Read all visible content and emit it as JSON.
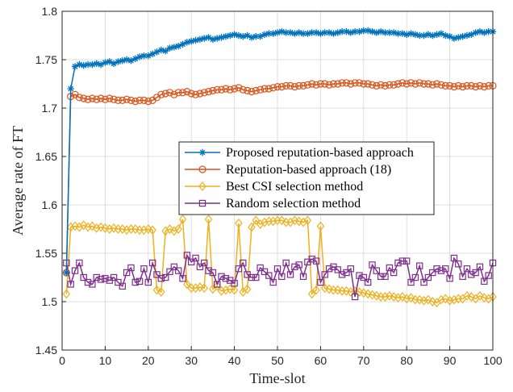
{
  "chart_data": {
    "type": "line",
    "title": "",
    "xlabel": "Time-slot",
    "ylabel": "Average rate of FT",
    "xlim": [
      0,
      100
    ],
    "ylim": [
      1.45,
      1.8
    ],
    "xticks": [
      0,
      10,
      20,
      30,
      40,
      50,
      60,
      70,
      80,
      90,
      100
    ],
    "xtick_labels": [
      "0",
      "10",
      "20",
      "30",
      "40",
      "50",
      "60",
      "70",
      "80",
      "90",
      "100"
    ],
    "yticks": [
      1.45,
      1.5,
      1.55,
      1.6,
      1.65,
      1.7,
      1.75,
      1.8
    ],
    "ytick_labels": [
      "1.45",
      "1.5",
      "1.55",
      "1.6",
      "1.65",
      "1.7",
      "1.75",
      "1.8"
    ],
    "grid": true,
    "legend_position": "center-right",
    "x": [
      1,
      2,
      3,
      4,
      5,
      6,
      7,
      8,
      9,
      10,
      11,
      12,
      13,
      14,
      15,
      16,
      17,
      18,
      19,
      20,
      21,
      22,
      23,
      24,
      25,
      26,
      27,
      28,
      29,
      30,
      31,
      32,
      33,
      34,
      35,
      36,
      37,
      38,
      39,
      40,
      41,
      42,
      43,
      44,
      45,
      46,
      47,
      48,
      49,
      50,
      51,
      52,
      53,
      54,
      55,
      56,
      57,
      58,
      59,
      60,
      61,
      62,
      63,
      64,
      65,
      66,
      67,
      68,
      69,
      70,
      71,
      72,
      73,
      74,
      75,
      76,
      77,
      78,
      79,
      80,
      81,
      82,
      83,
      84,
      85,
      86,
      87,
      88,
      89,
      90,
      91,
      92,
      93,
      94,
      95,
      96,
      97,
      98,
      99,
      100
    ],
    "series": [
      {
        "name": "Proposed reputation-based approach",
        "color": "#0072BD",
        "marker": "star",
        "values": [
          1.53,
          1.72,
          1.743,
          1.745,
          1.744,
          1.745,
          1.745,
          1.746,
          1.745,
          1.747,
          1.748,
          1.746,
          1.748,
          1.749,
          1.75,
          1.749,
          1.751,
          1.753,
          1.754,
          1.754,
          1.756,
          1.758,
          1.76,
          1.759,
          1.762,
          1.763,
          1.764,
          1.766,
          1.768,
          1.769,
          1.77,
          1.771,
          1.772,
          1.773,
          1.771,
          1.772,
          1.773,
          1.774,
          1.775,
          1.776,
          1.775,
          1.774,
          1.775,
          1.773,
          1.774,
          1.774,
          1.776,
          1.777,
          1.777,
          1.778,
          1.779,
          1.778,
          1.778,
          1.777,
          1.778,
          1.777,
          1.777,
          1.778,
          1.778,
          1.777,
          1.778,
          1.778,
          1.777,
          1.778,
          1.779,
          1.779,
          1.778,
          1.779,
          1.779,
          1.78,
          1.78,
          1.779,
          1.778,
          1.779,
          1.778,
          1.778,
          1.778,
          1.777,
          1.777,
          1.776,
          1.777,
          1.776,
          1.775,
          1.775,
          1.776,
          1.775,
          1.776,
          1.777,
          1.775,
          1.774,
          1.772,
          1.773,
          1.774,
          1.775,
          1.776,
          1.778,
          1.779,
          1.778,
          1.779,
          1.779
        ]
      },
      {
        "name": "Reputation-based approach (18)",
        "color": "#D95319",
        "marker": "circle",
        "values": [
          1.53,
          1.712,
          1.714,
          1.711,
          1.71,
          1.709,
          1.71,
          1.709,
          1.71,
          1.709,
          1.71,
          1.709,
          1.708,
          1.708,
          1.709,
          1.708,
          1.707,
          1.708,
          1.708,
          1.707,
          1.708,
          1.711,
          1.714,
          1.715,
          1.716,
          1.714,
          1.716,
          1.716,
          1.717,
          1.715,
          1.714,
          1.715,
          1.716,
          1.717,
          1.718,
          1.719,
          1.719,
          1.72,
          1.719,
          1.72,
          1.721,
          1.719,
          1.718,
          1.717,
          1.718,
          1.719,
          1.72,
          1.72,
          1.721,
          1.722,
          1.722,
          1.723,
          1.723,
          1.722,
          1.723,
          1.723,
          1.724,
          1.725,
          1.724,
          1.725,
          1.725,
          1.724,
          1.725,
          1.725,
          1.726,
          1.726,
          1.725,
          1.726,
          1.726,
          1.725,
          1.725,
          1.724,
          1.723,
          1.724,
          1.723,
          1.724,
          1.724,
          1.725,
          1.726,
          1.725,
          1.726,
          1.725,
          1.726,
          1.725,
          1.725,
          1.724,
          1.725,
          1.724,
          1.723,
          1.723,
          1.722,
          1.723,
          1.722,
          1.723,
          1.723,
          1.722,
          1.723,
          1.722,
          1.723,
          1.723
        ]
      },
      {
        "name": "Best CSI selection method",
        "color": "#EDB120",
        "marker": "diamond",
        "values": [
          1.508,
          1.577,
          1.578,
          1.577,
          1.579,
          1.577,
          1.578,
          1.576,
          1.577,
          1.576,
          1.575,
          1.576,
          1.575,
          1.575,
          1.574,
          1.575,
          1.575,
          1.574,
          1.574,
          1.575,
          1.574,
          1.512,
          1.51,
          1.573,
          1.575,
          1.573,
          1.575,
          1.585,
          1.518,
          1.514,
          1.514,
          1.515,
          1.514,
          1.585,
          1.513,
          1.516,
          1.511,
          1.512,
          1.513,
          1.512,
          1.581,
          1.51,
          1.513,
          1.577,
          1.584,
          1.58,
          1.582,
          1.583,
          1.583,
          1.584,
          1.584,
          1.582,
          1.582,
          1.584,
          1.583,
          1.582,
          1.584,
          1.508,
          1.512,
          1.578,
          1.514,
          1.513,
          1.512,
          1.512,
          1.511,
          1.511,
          1.51,
          1.511,
          1.51,
          1.509,
          1.508,
          1.507,
          1.506,
          1.505,
          1.505,
          1.506,
          1.505,
          1.504,
          1.505,
          1.503,
          1.504,
          1.502,
          1.502,
          1.501,
          1.502,
          1.5,
          1.499,
          1.502,
          1.503,
          1.501,
          1.502,
          1.503,
          1.503,
          1.506,
          1.505,
          1.503,
          1.506,
          1.504,
          1.503,
          1.505
        ]
      },
      {
        "name": "Random selection method",
        "color": "#7E2F8E",
        "marker": "square",
        "values": [
          1.54,
          1.518,
          1.532,
          1.54,
          1.525,
          1.52,
          1.518,
          1.525,
          1.523,
          1.524,
          1.522,
          1.525,
          1.52,
          1.516,
          1.53,
          1.535,
          1.52,
          1.521,
          1.534,
          1.52,
          1.54,
          1.528,
          1.524,
          1.525,
          1.531,
          1.536,
          1.532,
          1.524,
          1.548,
          1.541,
          1.545,
          1.536,
          1.54,
          1.532,
          1.53,
          1.518,
          1.526,
          1.524,
          1.522,
          1.519,
          1.534,
          1.54,
          1.528,
          1.525,
          1.525,
          1.535,
          1.531,
          1.527,
          1.52,
          1.534,
          1.526,
          1.54,
          1.528,
          1.536,
          1.538,
          1.526,
          1.541,
          1.544,
          1.542,
          1.52,
          1.528,
          1.534,
          1.536,
          1.533,
          1.528,
          1.53,
          1.534,
          1.505,
          1.527,
          1.525,
          1.52,
          1.538,
          1.532,
          1.526,
          1.526,
          1.535,
          1.53,
          1.54,
          1.542,
          1.542,
          1.52,
          1.525,
          1.537,
          1.52,
          1.525,
          1.53,
          1.534,
          1.532,
          1.534,
          1.524,
          1.545,
          1.539,
          1.526,
          1.534,
          1.528,
          1.53,
          1.536,
          1.521,
          1.527,
          1.54
        ]
      }
    ]
  }
}
